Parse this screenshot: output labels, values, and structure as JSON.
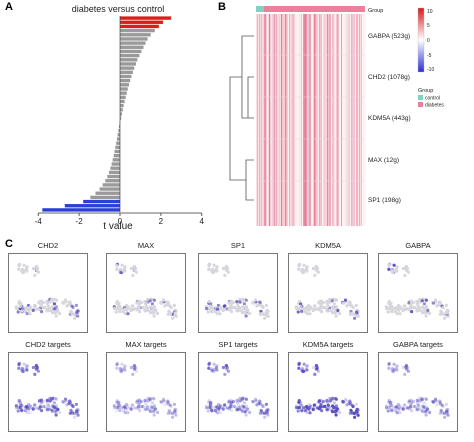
{
  "panel_a": {
    "letter": "A",
    "chart_data": {
      "type": "bar",
      "orientation": "horizontal",
      "title": "diabetes versus control",
      "xlabel": "t value",
      "ylabel": "",
      "xlim": [
        -4.5,
        4.5
      ],
      "xticks": [
        "-4",
        "-2",
        "0",
        "2",
        "4"
      ],
      "grid": false,
      "values": [
        2.5,
        2.1,
        1.9,
        1.7,
        1.5,
        1.35,
        1.25,
        1.15,
        1.05,
        0.95,
        0.85,
        0.78,
        0.7,
        0.63,
        0.56,
        0.5,
        0.44,
        0.38,
        0.33,
        0.28,
        0.23,
        0.18,
        0.14,
        0.1,
        0.06,
        -0.02,
        -0.05,
        -0.08,
        -0.12,
        -0.15,
        -0.19,
        -0.23,
        -0.27,
        -0.31,
        -0.36,
        -0.41,
        -0.47,
        -0.54,
        -0.62,
        -0.72,
        -0.85,
        -1.0,
        -1.2,
        -1.45,
        -1.8,
        -2.7,
        -3.8
      ],
      "colors": {
        "up": "#dd1c1c",
        "neutral": "#9a9a9a",
        "down": "#2a3fd6"
      },
      "up_count": 3,
      "down_count": 3
    }
  },
  "panel_b": {
    "letter": "B",
    "group_label": "Group",
    "row_labels": [
      "GABPA (523g)",
      "CHD2 (1078g)",
      "KDM5A (443g)",
      "MAX (12g)",
      "SP1 (198g)"
    ],
    "colorbar_ticks": [
      "10",
      "5",
      "0",
      "-5",
      "-10"
    ],
    "colorbar_colors": {
      "high": "#d7191c",
      "mid": "#ffffff",
      "low": "#2b2bd6"
    },
    "legend": {
      "title": "Group",
      "items": [
        {
          "label": "control",
          "color": "#7fd3c4"
        },
        {
          "label": "diabetes",
          "color": "#e9819c"
        }
      ]
    }
  },
  "panel_c": {
    "letter": "C",
    "tiles_row1": [
      "CHD2",
      "MAX",
      "SP1",
      "KDM5A",
      "GABPA"
    ],
    "tiles_row2": [
      "CHD2 targets",
      "MAX targets",
      "SP1 targets",
      "KDM5A targets",
      "GABPA targets"
    ],
    "intensity_row1": [
      0.55,
      0.4,
      0.45,
      0.5,
      0.35
    ],
    "intensity_row2": [
      0.75,
      0.35,
      0.6,
      0.95,
      0.5
    ],
    "point_color": "#5a4fc0",
    "base_color": "#d6d6dc"
  }
}
